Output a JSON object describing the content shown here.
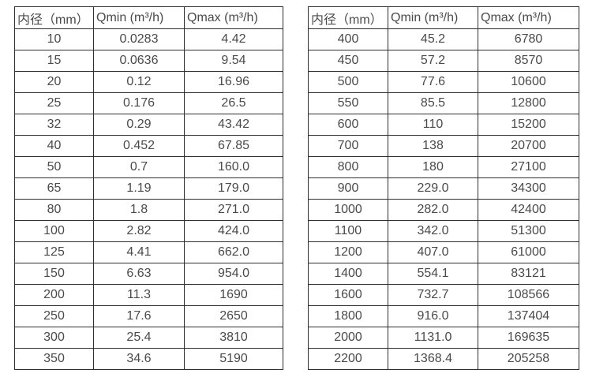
{
  "page": {
    "background": "#ffffff",
    "border_color": "#2f2f2f",
    "text_color": "#4a4a4a"
  },
  "tables": [
    {
      "name": "small-diameter-flow-specs",
      "headers": [
        "内径（mm）",
        "Qmin (m³/h)",
        "Qmax (m³/h)"
      ],
      "rows": [
        [
          "10",
          "0.0283",
          "4.42"
        ],
        [
          "15",
          "0.0636",
          "9.54"
        ],
        [
          "20",
          "0.12",
          "16.96"
        ],
        [
          "25",
          "0.176",
          "26.5"
        ],
        [
          "32",
          "0.29",
          "43.42"
        ],
        [
          "40",
          "0.452",
          "67.85"
        ],
        [
          "50",
          "0.7",
          "160.0"
        ],
        [
          "65",
          "1.19",
          "179.0"
        ],
        [
          "80",
          "1.8",
          "271.0"
        ],
        [
          "100",
          "2.82",
          "424.0"
        ],
        [
          "125",
          "4.41",
          "662.0"
        ],
        [
          "150",
          "6.63",
          "954.0"
        ],
        [
          "200",
          "11.3",
          "1690"
        ],
        [
          "250",
          "17.6",
          "2650"
        ],
        [
          "300",
          "25.4",
          "3810"
        ],
        [
          "350",
          "34.6",
          "5190"
        ]
      ]
    },
    {
      "name": "large-diameter-flow-specs",
      "headers": [
        "内径（mm）",
        "Qmin (m³/h)",
        "Qmax (m³/h)"
      ],
      "rows": [
        [
          "400",
          "45.2",
          "6780"
        ],
        [
          "450",
          "57.2",
          "8570"
        ],
        [
          "500",
          "77.6",
          "10600"
        ],
        [
          "550",
          "85.5",
          "12800"
        ],
        [
          "600",
          "110",
          "15200"
        ],
        [
          "700",
          "138",
          "20700"
        ],
        [
          "800",
          "180",
          "27100"
        ],
        [
          "900",
          "229.0",
          "34300"
        ],
        [
          "1000",
          "282.0",
          "42400"
        ],
        [
          "1100",
          "342.0",
          "51300"
        ],
        [
          "1200",
          "407.0",
          "61000"
        ],
        [
          "1400",
          "554.1",
          "83121"
        ],
        [
          "1600",
          "732.7",
          "108566"
        ],
        [
          "1800",
          "916.0",
          "137404"
        ],
        [
          "2000",
          "1131.0",
          "169635"
        ],
        [
          "2200",
          "1368.4",
          "205258"
        ]
      ]
    }
  ]
}
